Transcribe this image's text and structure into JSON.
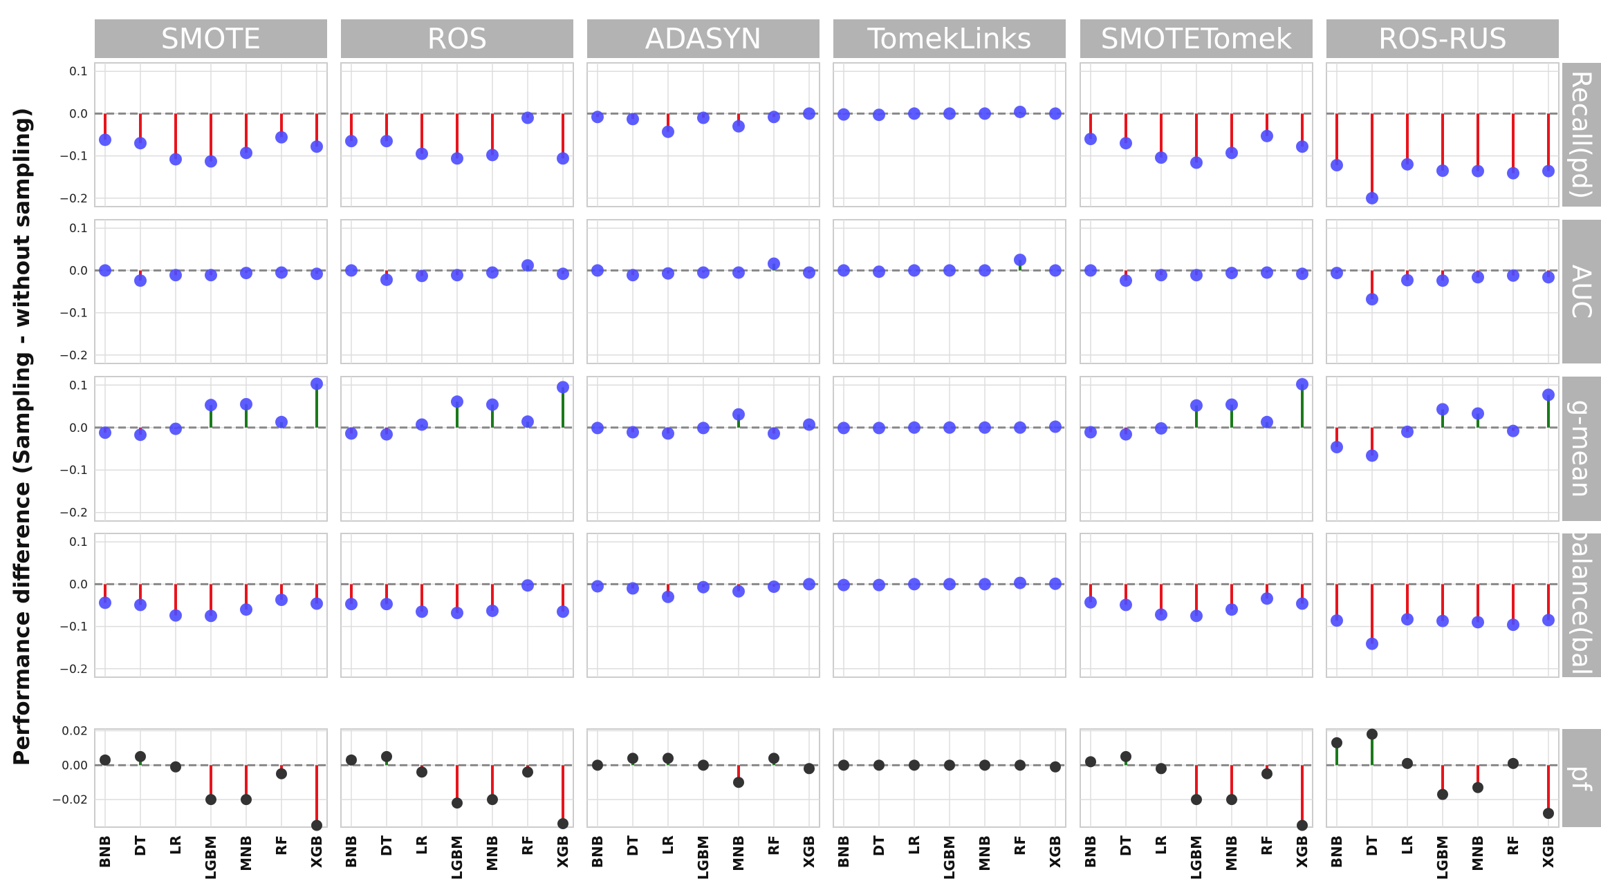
{
  "chart_data": {
    "type": "scatter",
    "style": "lollipop grid: stems from zero line to each point (red = below zero, green = above zero)",
    "ylabel": "Performance difference (Sampling - without sampling)",
    "columns": [
      "SMOTE",
      "ROS",
      "ADASYN",
      "TomekLinks",
      "SMOTETomek",
      "ROS-RUS"
    ],
    "categories": [
      "BNB",
      "DT",
      "LR",
      "LGBM",
      "MNB",
      "RF",
      "XGB"
    ],
    "zero_line": "dashed grey at 0.0",
    "grid": true,
    "colors": {
      "positive_stem": "#1a7a1a",
      "negative_stem": "#e8141c",
      "point_main": "#4b4bff",
      "point_pf": "#333333",
      "strip": "#b3b3b3"
    },
    "rows": [
      {
        "name": "Recall(pd)",
        "ylim": [
          -0.22,
          0.12
        ],
        "yticks": [
          0.1,
          0.0,
          -0.1,
          -0.2
        ],
        "tick_labels": [
          "0.1",
          "0.0",
          "−0.1",
          "−0.2"
        ],
        "values": [
          [
            -0.062,
            -0.07,
            -0.108,
            -0.113,
            -0.093,
            -0.056,
            -0.078
          ],
          [
            -0.065,
            -0.065,
            -0.095,
            -0.106,
            -0.098,
            -0.01,
            -0.106
          ],
          [
            -0.008,
            -0.013,
            -0.043,
            -0.01,
            -0.03,
            -0.008,
            0.0
          ],
          [
            -0.002,
            -0.003,
            0.0,
            0.0,
            0.0,
            0.004,
            0.0
          ],
          [
            -0.06,
            -0.07,
            -0.104,
            -0.116,
            -0.093,
            -0.053,
            -0.078
          ],
          [
            -0.122,
            -0.2,
            -0.12,
            -0.135,
            -0.136,
            -0.141,
            -0.136
          ]
        ]
      },
      {
        "name": "AUC",
        "ylim": [
          -0.22,
          0.12
        ],
        "yticks": [
          0.1,
          0.0,
          -0.1,
          -0.2
        ],
        "tick_labels": [
          "0.1",
          "0.0",
          "−0.1",
          "−0.2"
        ],
        "values": [
          [
            0.0,
            -0.024,
            -0.011,
            -0.011,
            -0.006,
            -0.005,
            -0.008
          ],
          [
            0.0,
            -0.022,
            -0.013,
            -0.011,
            -0.005,
            0.012,
            -0.008
          ],
          [
            0.0,
            -0.011,
            -0.007,
            -0.005,
            -0.005,
            0.016,
            -0.005
          ],
          [
            0.0,
            -0.003,
            0.0,
            0.0,
            0.0,
            0.025,
            0.0
          ],
          [
            0.0,
            -0.024,
            -0.011,
            -0.011,
            -0.006,
            -0.005,
            -0.008
          ],
          [
            -0.006,
            -0.068,
            -0.023,
            -0.024,
            -0.016,
            -0.012,
            -0.016
          ]
        ]
      },
      {
        "name": "g-mean",
        "ylim": [
          -0.22,
          0.12
        ],
        "yticks": [
          0.1,
          0.0,
          -0.1,
          -0.2
        ],
        "tick_labels": [
          "0.1",
          "0.0",
          "−0.1",
          "−0.2"
        ],
        "values": [
          [
            -0.012,
            -0.017,
            -0.003,
            0.053,
            0.055,
            0.013,
            0.103
          ],
          [
            -0.014,
            -0.016,
            0.007,
            0.061,
            0.054,
            0.014,
            0.095
          ],
          [
            -0.001,
            -0.011,
            -0.014,
            -0.001,
            0.031,
            -0.014,
            0.007
          ],
          [
            -0.001,
            -0.001,
            0.0,
            0.0,
            0.0,
            0.0,
            0.002
          ],
          [
            -0.011,
            -0.016,
            -0.002,
            0.052,
            0.054,
            0.013,
            0.102
          ],
          [
            -0.046,
            -0.066,
            -0.01,
            0.043,
            0.033,
            -0.008,
            0.077
          ]
        ]
      },
      {
        "name": "balance(bal)",
        "ylim": [
          -0.22,
          0.12
        ],
        "yticks": [
          0.1,
          0.0,
          -0.1,
          -0.2
        ],
        "tick_labels": [
          "0.1",
          "0.0",
          "−0.1",
          "−0.2"
        ],
        "values": [
          [
            -0.044,
            -0.049,
            -0.074,
            -0.075,
            -0.06,
            -0.037,
            -0.046
          ],
          [
            -0.047,
            -0.047,
            -0.065,
            -0.068,
            -0.063,
            -0.003,
            -0.065
          ],
          [
            -0.005,
            -0.01,
            -0.03,
            -0.007,
            -0.017,
            -0.006,
            0.0
          ],
          [
            -0.002,
            -0.002,
            0.0,
            0.0,
            0.0,
            0.003,
            0.001
          ],
          [
            -0.043,
            -0.049,
            -0.072,
            -0.075,
            -0.06,
            -0.034,
            -0.046
          ],
          [
            -0.086,
            -0.141,
            -0.083,
            -0.087,
            -0.09,
            -0.096,
            -0.085
          ]
        ]
      },
      {
        "name": "pf",
        "ylim": [
          -0.036,
          0.021
        ],
        "yticks": [
          0.02,
          0.0,
          -0.02
        ],
        "tick_labels": [
          "0.02",
          "0.00",
          "−0.02"
        ],
        "values": [
          [
            0.003,
            0.005,
            -0.001,
            -0.02,
            -0.02,
            -0.005,
            -0.035
          ],
          [
            0.003,
            0.005,
            -0.004,
            -0.022,
            -0.02,
            -0.004,
            -0.034
          ],
          [
            0.0,
            0.004,
            0.004,
            0.0,
            -0.01,
            0.004,
            -0.002
          ],
          [
            0.0,
            0.0,
            0.0,
            0.0,
            0.0,
            0.0,
            -0.001
          ],
          [
            0.002,
            0.005,
            -0.002,
            -0.02,
            -0.02,
            -0.005,
            -0.035
          ],
          [
            0.013,
            0.018,
            0.001,
            -0.017,
            -0.013,
            0.001,
            -0.028
          ]
        ]
      }
    ]
  }
}
